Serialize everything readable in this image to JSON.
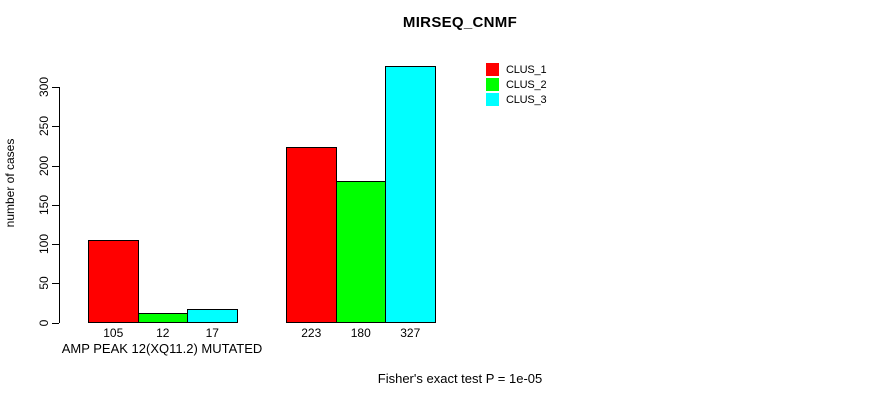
{
  "chart_data": {
    "type": "bar",
    "title": "MIRSEQ_CNMF",
    "ylabel": "number of cases",
    "xlabel": "",
    "categories": [
      "AMP PEAK 12(XQ11.2) MUTATED",
      ""
    ],
    "series": [
      {
        "name": "CLUS_1",
        "color": "#ff0000",
        "values": [
          105,
          223
        ]
      },
      {
        "name": "CLUS_2",
        "color": "#00ff00",
        "values": [
          12,
          180
        ]
      },
      {
        "name": "CLUS_3",
        "color": "#00ffff",
        "values": [
          17,
          327
        ]
      }
    ],
    "bar_value_labels": [
      [
        105,
        12,
        17
      ],
      [
        223,
        180,
        327
      ]
    ],
    "yticks": [
      0,
      50,
      100,
      150,
      200,
      250,
      300
    ],
    "ylim": [
      0,
      330
    ],
    "grid": false,
    "legend_position": "top-right",
    "annotation": "Fisher's exact test P = 1e-05"
  }
}
